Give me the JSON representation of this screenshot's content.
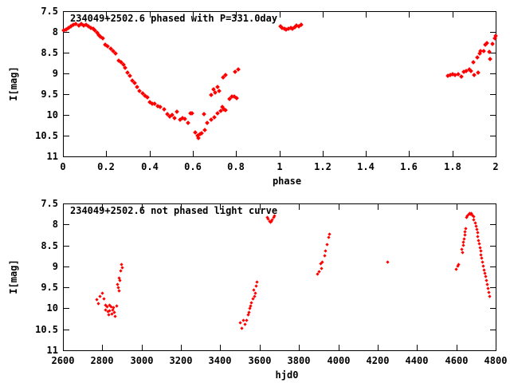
{
  "page": {
    "background": "#ffffff",
    "text_color": "#000000"
  },
  "chart_data": [
    {
      "type": "scatter",
      "title": "234049+2502.6 phased with P=331.0day",
      "xlabel": "phase",
      "ylabel": "I[mag]",
      "xlim": [
        0,
        2
      ],
      "ylim": [
        11,
        7.5
      ],
      "y_axis_inverted": true,
      "grid": false,
      "legend": "none",
      "border": "full box, inward mirrored ticks",
      "marker_color": "#ff0000",
      "marker_shape": "filled-diamond",
      "xticks": [
        0,
        0.2,
        0.4,
        0.6,
        0.8,
        1,
        1.2,
        1.4,
        1.6,
        1.8,
        2
      ],
      "xtick_labels": [
        "0",
        "0.2",
        "0.4",
        "0.6",
        "0.8",
        "1",
        "1.2",
        "1.4",
        "1.6",
        "1.8",
        "2"
      ],
      "yticks": [
        7.5,
        8,
        8.5,
        9,
        9.5,
        10,
        10.5,
        11
      ],
      "ytick_labels": [
        "7.5",
        "8",
        "8.5",
        "9",
        "9.5",
        "10",
        "10.5",
        "11"
      ],
      "points": [
        [
          0.004,
          7.96
        ],
        [
          0.015,
          7.94
        ],
        [
          0.026,
          7.9
        ],
        [
          0.038,
          7.86
        ],
        [
          0.049,
          7.83
        ],
        [
          0.06,
          7.81
        ],
        [
          0.072,
          7.84
        ],
        [
          0.083,
          7.81
        ],
        [
          0.094,
          7.85
        ],
        [
          0.106,
          7.82
        ],
        [
          0.117,
          7.87
        ],
        [
          0.128,
          7.9
        ],
        [
          0.139,
          7.93
        ],
        [
          0.149,
          7.97
        ],
        [
          0.158,
          8.02
        ],
        [
          0.166,
          8.07
        ],
        [
          0.174,
          8.11
        ],
        [
          0.183,
          8.16
        ],
        [
          0.197,
          8.3
        ],
        [
          0.208,
          8.34
        ],
        [
          0.22,
          8.41
        ],
        [
          0.232,
          8.47
        ],
        [
          0.243,
          8.52
        ],
        [
          0.257,
          8.69
        ],
        [
          0.268,
          8.73
        ],
        [
          0.279,
          8.79
        ],
        [
          0.289,
          8.86
        ],
        [
          0.3,
          8.99
        ],
        [
          0.31,
          9.05
        ],
        [
          0.322,
          9.18
        ],
        [
          0.331,
          9.24
        ],
        [
          0.343,
          9.33
        ],
        [
          0.355,
          9.42
        ],
        [
          0.367,
          9.49
        ],
        [
          0.379,
          9.54
        ],
        [
          0.39,
          9.58
        ],
        [
          0.402,
          9.69
        ],
        [
          0.411,
          9.74
        ],
        [
          0.423,
          9.73
        ],
        [
          0.437,
          9.78
        ],
        [
          0.451,
          9.81
        ],
        [
          0.466,
          9.86
        ],
        [
          0.483,
          9.99
        ],
        [
          0.494,
          10.04
        ],
        [
          0.503,
          10.0
        ],
        [
          0.514,
          10.07
        ],
        [
          0.528,
          9.93
        ],
        [
          0.54,
          10.11
        ],
        [
          0.553,
          10.07
        ],
        [
          0.565,
          10.1
        ],
        [
          0.577,
          10.19
        ],
        [
          0.59,
          9.96
        ],
        [
          0.596,
          9.97
        ],
        [
          0.611,
          10.42
        ],
        [
          0.622,
          10.5
        ],
        [
          0.625,
          10.55
        ],
        [
          0.633,
          10.47
        ],
        [
          0.641,
          10.44
        ],
        [
          0.652,
          9.99
        ],
        [
          0.656,
          10.37
        ],
        [
          0.668,
          10.2
        ],
        [
          0.685,
          10.12
        ],
        [
          0.7,
          10.05
        ],
        [
          0.715,
          9.97
        ],
        [
          0.729,
          9.9
        ],
        [
          0.738,
          9.81
        ],
        [
          0.744,
          9.86
        ],
        [
          0.752,
          9.88
        ],
        [
          0.771,
          9.62
        ],
        [
          0.78,
          9.56
        ],
        [
          0.792,
          9.55
        ],
        [
          0.804,
          9.6
        ],
        [
          0.686,
          9.52
        ],
        [
          0.697,
          9.39
        ],
        [
          0.703,
          9.47
        ],
        [
          0.713,
          9.33
        ],
        [
          0.722,
          9.42
        ],
        [
          0.74,
          9.1
        ],
        [
          0.753,
          9.04
        ],
        [
          0.795,
          8.96
        ],
        [
          0.81,
          8.91
        ],
        [
          1.005,
          7.87
        ],
        [
          1.014,
          7.9
        ],
        [
          1.024,
          7.92
        ],
        [
          1.033,
          7.94
        ],
        [
          1.043,
          7.92
        ],
        [
          1.052,
          7.9
        ],
        [
          1.061,
          7.92
        ],
        [
          1.071,
          7.88
        ],
        [
          1.08,
          7.84
        ],
        [
          1.09,
          7.87
        ],
        [
          1.1,
          7.82
        ],
        [
          1.778,
          9.06
        ],
        [
          1.79,
          9.04
        ],
        [
          1.802,
          9.01
        ],
        [
          1.811,
          9.04
        ],
        [
          1.827,
          9.01
        ],
        [
          1.843,
          9.07
        ],
        [
          1.851,
          8.96
        ],
        [
          1.864,
          8.94
        ],
        [
          1.879,
          8.9
        ],
        [
          1.885,
          8.94
        ],
        [
          1.897,
          8.74
        ],
        [
          1.901,
          9.04
        ],
        [
          1.916,
          8.62
        ],
        [
          1.919,
          8.99
        ],
        [
          1.925,
          8.51
        ],
        [
          1.929,
          8.47
        ],
        [
          1.946,
          8.47
        ],
        [
          1.953,
          8.3
        ],
        [
          1.958,
          8.26
        ],
        [
          1.97,
          8.48
        ],
        [
          1.974,
          8.66
        ],
        [
          1.986,
          8.29
        ],
        [
          1.995,
          8.15
        ],
        [
          2.0,
          8.1
        ]
      ]
    },
    {
      "type": "scatter",
      "title": "234049+2502.6 not phased light curve",
      "xlabel": "hjd0",
      "ylabel": "I[mag]",
      "xlim": [
        2600,
        4800
      ],
      "ylim": [
        11,
        7.5
      ],
      "y_axis_inverted": true,
      "grid": false,
      "legend": "none",
      "border": "full box, inward mirrored ticks",
      "marker_color": "#ff0000",
      "marker_shape": "filled-diamond",
      "xticks": [
        2600,
        2800,
        3000,
        3200,
        3400,
        3600,
        3800,
        4000,
        4200,
        4400,
        4600,
        4800
      ],
      "xtick_labels": [
        "2600",
        "2800",
        "3000",
        "3200",
        "3400",
        "3600",
        "3800",
        "4000",
        "4200",
        "4400",
        "4600",
        "4800"
      ],
      "yticks": [
        7.5,
        8,
        8.5,
        9,
        9.5,
        10,
        10.5,
        11
      ],
      "ytick_labels": [
        "7.5",
        "8",
        "8.5",
        "9",
        "9.5",
        "10",
        "10.5",
        "11"
      ],
      "points": [
        [
          2774,
          9.8
        ],
        [
          2781,
          9.88
        ],
        [
          2788,
          9.72
        ],
        [
          2801,
          9.64
        ],
        [
          2808,
          9.77
        ],
        [
          2815,
          9.92
        ],
        [
          2818,
          10.04
        ],
        [
          2823,
          9.97
        ],
        [
          2827,
          10.07
        ],
        [
          2831,
          10.16
        ],
        [
          2835,
          9.92
        ],
        [
          2839,
          10.05
        ],
        [
          2844,
          9.96
        ],
        [
          2848,
          10.13
        ],
        [
          2852,
          10.04
        ],
        [
          2858,
          9.99
        ],
        [
          2862,
          10.09
        ],
        [
          2866,
          10.19
        ],
        [
          2874,
          9.94
        ],
        [
          2876,
          9.43
        ],
        [
          2880,
          9.51
        ],
        [
          2884,
          9.58
        ],
        [
          2886,
          9.27
        ],
        [
          2889,
          9.34
        ],
        [
          2893,
          9.1
        ],
        [
          2897,
          8.95
        ],
        [
          2901,
          9.03
        ],
        [
          3502,
          10.34
        ],
        [
          3509,
          10.48
        ],
        [
          3516,
          10.28
        ],
        [
          3527,
          10.39
        ],
        [
          3532,
          10.29
        ],
        [
          3540,
          10.15
        ],
        [
          3545,
          10.09
        ],
        [
          3550,
          10.0
        ],
        [
          3554,
          9.94
        ],
        [
          3559,
          9.86
        ],
        [
          3567,
          9.78
        ],
        [
          3570,
          9.56
        ],
        [
          3573,
          9.71
        ],
        [
          3577,
          9.64
        ],
        [
          3581,
          9.46
        ],
        [
          3585,
          9.37
        ],
        [
          3638,
          7.84
        ],
        [
          3644,
          7.88
        ],
        [
          3650,
          7.92
        ],
        [
          3655,
          7.95
        ],
        [
          3660,
          7.93
        ],
        [
          3665,
          7.89
        ],
        [
          3670,
          7.84
        ],
        [
          3674,
          7.8
        ],
        [
          3896,
          9.18
        ],
        [
          3903,
          9.12
        ],
        [
          3910,
          8.94
        ],
        [
          3916,
          9.05
        ],
        [
          3920,
          8.89
        ],
        [
          3929,
          8.74
        ],
        [
          3937,
          8.64
        ],
        [
          3943,
          8.48
        ],
        [
          3950,
          8.3
        ],
        [
          3954,
          8.24
        ],
        [
          4250,
          8.9
        ],
        [
          4601,
          9.06
        ],
        [
          4606,
          8.99
        ],
        [
          4611,
          8.95
        ],
        [
          4626,
          8.59
        ],
        [
          4630,
          8.67
        ],
        [
          4634,
          8.5
        ],
        [
          4637,
          8.42
        ],
        [
          4640,
          8.34
        ],
        [
          4643,
          8.25
        ],
        [
          4646,
          8.17
        ],
        [
          4649,
          8.1
        ],
        [
          4653,
          7.83
        ],
        [
          4658,
          7.79
        ],
        [
          4663,
          7.75
        ],
        [
          4668,
          7.74
        ],
        [
          4672,
          7.76
        ],
        [
          4677,
          7.74
        ],
        [
          4682,
          7.78
        ],
        [
          4687,
          7.82
        ],
        [
          4690,
          7.89
        ],
        [
          4695,
          7.96
        ],
        [
          4700,
          8.04
        ],
        [
          4703,
          8.12
        ],
        [
          4707,
          8.2
        ],
        [
          4710,
          8.29
        ],
        [
          4714,
          8.39
        ],
        [
          4717,
          8.46
        ],
        [
          4721,
          8.55
        ],
        [
          4724,
          8.63
        ],
        [
          4727,
          8.72
        ],
        [
          4730,
          8.8
        ],
        [
          4734,
          8.89
        ],
        [
          4737,
          8.99
        ],
        [
          4741,
          9.08
        ],
        [
          4744,
          9.16
        ],
        [
          4748,
          9.24
        ],
        [
          4752,
          9.34
        ],
        [
          4757,
          9.43
        ],
        [
          4761,
          9.53
        ],
        [
          4765,
          9.62
        ],
        [
          4770,
          9.72
        ]
      ]
    }
  ]
}
